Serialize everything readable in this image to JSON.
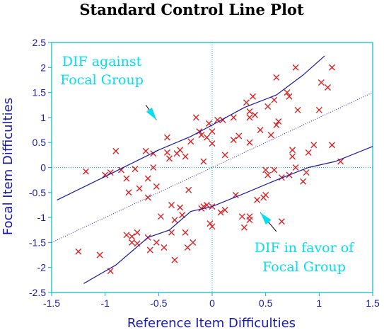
{
  "chart_data": {
    "type": "scatter",
    "title": "Standard Control Line Plot",
    "xlabel": "Reference Item Difficulties",
    "ylabel": "Focal Item Difficulties",
    "xlim": [
      -1.5,
      1.5
    ],
    "ylim": [
      -2.5,
      2.5
    ],
    "xticks": [
      "-1.5",
      "-1",
      "-0.5",
      "0",
      "0.5",
      "1",
      "1.5"
    ],
    "yticks": [
      "2.5",
      "2",
      "1.5",
      "1",
      "0.5",
      "0",
      "-0.5",
      "-1",
      "-1.5",
      "-2",
      "-2.5"
    ],
    "grid": false,
    "reference_lines": {
      "x": 0,
      "y": 0
    },
    "annotations": [
      {
        "lines": [
          "DIF against",
          "Focal Group"
        ],
        "arrow_from": [
          -0.62,
          1.25
        ],
        "arrow_to": [
          -0.52,
          0.95
        ]
      },
      {
        "lines": [
          "DIF in favor of",
          "Focal Group"
        ],
        "arrow_from": [
          0.6,
          -1.28
        ],
        "arrow_to": [
          0.45,
          -0.9
        ]
      }
    ],
    "colors": {
      "points": "#dd2222",
      "control_lines": "#1a1aa6",
      "identity_line": "#1a1aa6",
      "axes_frame": "#00b8c8",
      "annotations": "#00e0f0",
      "tick_text": "#1a1aa6"
    },
    "series": [
      {
        "type": "scatter",
        "marker": "x",
        "points": [
          [
            -1.25,
            -1.68
          ],
          [
            -1.18,
            -0.08
          ],
          [
            -1.05,
            -1.75
          ],
          [
            -1.0,
            -0.15
          ],
          [
            -0.95,
            -0.1
          ],
          [
            -0.95,
            -2.07
          ],
          [
            -0.9,
            0.33
          ],
          [
            -0.85,
            -0.05
          ],
          [
            -0.8,
            -0.22
          ],
          [
            -0.8,
            -1.35
          ],
          [
            -0.78,
            -0.5
          ],
          [
            -0.75,
            -1.38
          ],
          [
            -0.75,
            -1.5
          ],
          [
            -0.72,
            -0.03
          ],
          [
            -0.7,
            -1.3
          ],
          [
            -0.7,
            -1.52
          ],
          [
            -0.68,
            -0.42
          ],
          [
            -0.62,
            0.33
          ],
          [
            -0.6,
            -0.22
          ],
          [
            -0.6,
            -0.6
          ],
          [
            -0.6,
            -1.4
          ],
          [
            -0.58,
            -1.65
          ],
          [
            -0.55,
            -0.0
          ],
          [
            -0.55,
            0.28
          ],
          [
            -0.52,
            -0.38
          ],
          [
            -0.52,
            -1.5
          ],
          [
            -0.48,
            -0.98
          ],
          [
            -0.45,
            -1.6
          ],
          [
            -0.42,
            0.3
          ],
          [
            -0.42,
            0.6
          ],
          [
            -0.4,
            0.18
          ],
          [
            -0.38,
            -1.3
          ],
          [
            -0.38,
            -0.75
          ],
          [
            -0.35,
            -1.05
          ],
          [
            -0.35,
            -1.85
          ],
          [
            -0.33,
            0.28
          ],
          [
            -0.3,
            0.35
          ],
          [
            -0.3,
            -0.8
          ],
          [
            -0.28,
            -0.95
          ],
          [
            -0.25,
            0.22
          ],
          [
            -0.25,
            -1.3
          ],
          [
            -0.23,
            -1.6
          ],
          [
            -0.22,
            -0.45
          ],
          [
            -0.2,
            0.52
          ],
          [
            -0.18,
            -1.5
          ],
          [
            -0.15,
            1.0
          ],
          [
            -0.12,
            0.72
          ],
          [
            -0.1,
            0.65
          ],
          [
            -0.1,
            -0.82
          ],
          [
            -0.08,
            0.12
          ],
          [
            -0.08,
            -0.78
          ],
          [
            -0.05,
            0.6
          ],
          [
            -0.05,
            -0.75
          ],
          [
            -0.03,
            0.88
          ],
          [
            -0.02,
            -1.12
          ],
          [
            0.0,
            0.48
          ],
          [
            0.0,
            -0.78
          ],
          [
            0.0,
            -1.18
          ],
          [
            0.0,
            0.72
          ],
          [
            0.05,
            0.95
          ],
          [
            0.08,
            -0.9
          ],
          [
            0.1,
            0.95
          ],
          [
            0.12,
            -0.85
          ],
          [
            0.12,
            0.25
          ],
          [
            0.2,
            1.0
          ],
          [
            0.2,
            0.55
          ],
          [
            0.22,
            -0.55
          ],
          [
            0.25,
            0.63
          ],
          [
            0.28,
            -0.98
          ],
          [
            0.3,
            -1.2
          ],
          [
            0.32,
            1.3
          ],
          [
            0.35,
            -0.98
          ],
          [
            0.35,
            -1.05
          ],
          [
            0.35,
            1.12
          ],
          [
            0.35,
            1.0
          ],
          [
            0.35,
            0.5
          ],
          [
            0.38,
            1.42
          ],
          [
            0.4,
            1.05
          ],
          [
            0.42,
            -0.65
          ],
          [
            0.45,
            0.75
          ],
          [
            0.48,
            -0.6
          ],
          [
            0.5,
            -0.05
          ],
          [
            0.5,
            -0.55
          ],
          [
            0.52,
            -0.15
          ],
          [
            0.52,
            1.22
          ],
          [
            0.55,
            0.65
          ],
          [
            0.58,
            1.35
          ],
          [
            0.58,
            -0.05
          ],
          [
            0.6,
            1.8
          ],
          [
            0.6,
            0.85
          ],
          [
            0.62,
            0.92
          ],
          [
            0.65,
            -0.2
          ],
          [
            0.65,
            -1.08
          ],
          [
            0.7,
            1.5
          ],
          [
            0.72,
            1.42
          ],
          [
            0.72,
            -0.15
          ],
          [
            0.75,
            0.35
          ],
          [
            0.75,
            0.22
          ],
          [
            0.78,
            0.0
          ],
          [
            0.78,
            2.0
          ],
          [
            0.8,
            1.15
          ],
          [
            0.85,
            -0.28
          ],
          [
            0.88,
            -0.1
          ],
          [
            0.9,
            0.3
          ],
          [
            0.95,
            0.45
          ],
          [
            1.0,
            1.15
          ],
          [
            1.02,
            1.7
          ],
          [
            1.08,
            1.6
          ],
          [
            1.12,
            2.0
          ],
          [
            1.12,
            0.45
          ],
          [
            1.2,
            0.12
          ]
        ]
      },
      {
        "name": "upper control line",
        "type": "line",
        "points": [
          [
            -1.45,
            -0.65
          ],
          [
            -1.0,
            -0.18
          ],
          [
            -0.5,
            0.35
          ],
          [
            -0.2,
            0.62
          ],
          [
            0.0,
            0.85
          ],
          [
            0.3,
            1.2
          ],
          [
            0.6,
            1.45
          ],
          [
            0.85,
            1.85
          ],
          [
            1.05,
            2.23
          ]
        ]
      },
      {
        "name": "identity line",
        "type": "line",
        "style": "dotted",
        "points": [
          [
            -1.5,
            -1.5
          ],
          [
            1.5,
            1.5
          ]
        ]
      },
      {
        "name": "lower control line",
        "type": "line",
        "points": [
          [
            -1.2,
            -2.32
          ],
          [
            -0.9,
            -1.95
          ],
          [
            -0.6,
            -1.4
          ],
          [
            -0.4,
            -1.25
          ],
          [
            -0.2,
            -0.88
          ],
          [
            0.0,
            -0.78
          ],
          [
            0.3,
            -0.52
          ],
          [
            0.6,
            -0.25
          ],
          [
            0.9,
            0.0
          ],
          [
            1.15,
            0.12
          ],
          [
            1.5,
            0.42
          ]
        ]
      }
    ]
  }
}
